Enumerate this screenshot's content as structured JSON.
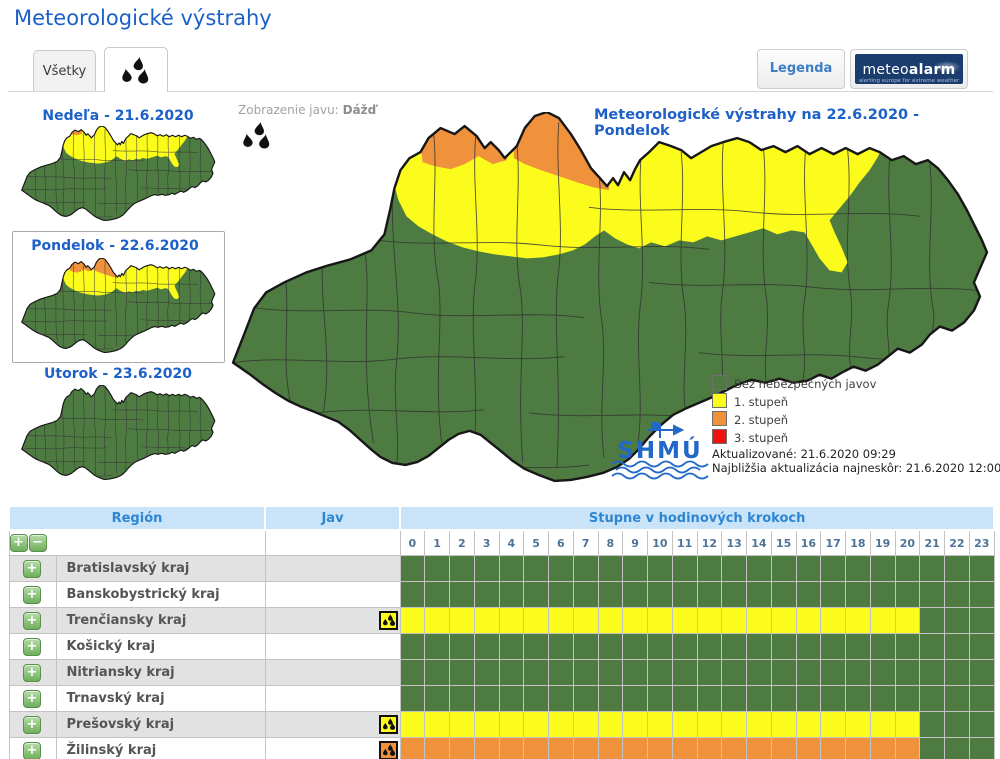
{
  "page": {
    "title": "Meteorologické výstrahy"
  },
  "tabs": {
    "all_label": "Všetky",
    "rain_tab": "rain-drops-tab"
  },
  "header_buttons": {
    "legend_label": "Legenda",
    "meteoalarm": {
      "word1": "meteo",
      "word2": "alarm",
      "tagline": "alerting europe for extreme weather"
    }
  },
  "sidebar": {
    "days": [
      {
        "label": "Nedeľa - 21.6.2020",
        "selected": false
      },
      {
        "label": "Pondelok - 22.6.2020",
        "selected": true
      },
      {
        "label": "Utorok - 23.6.2020",
        "selected": false
      }
    ]
  },
  "map": {
    "display_label": "Zobrazenie javu:",
    "display_value": "Dážď",
    "title": "Meteorologické výstrahy na 22.6.2020 - Pondelok",
    "legend": [
      {
        "label": "Bez nebezpečných javov",
        "color": "#4E7B41"
      },
      {
        "label": "1. stupeň",
        "color": "#FBFB1C"
      },
      {
        "label": "2. stupeň",
        "color": "#F0913C"
      },
      {
        "label": "3. stupeň",
        "color": "#F01111"
      }
    ],
    "updated": "Aktualizované: 21.6.2020 09:29",
    "next_update": "Najbližšia aktualizácia najneskôr: 21.6.2020 12:00",
    "logo_text": "SHMÚ"
  },
  "table": {
    "headers": {
      "region": "Región",
      "jav": "Jav",
      "hours": "Stupne v hodinových krokoch"
    },
    "hour_labels": [
      "0",
      "1",
      "2",
      "3",
      "4",
      "5",
      "6",
      "7",
      "8",
      "9",
      "10",
      "11",
      "12",
      "13",
      "14",
      "15",
      "16",
      "17",
      "18",
      "19",
      "20",
      "21",
      "22",
      "23"
    ],
    "rows": [
      {
        "region": "Bratislavský kraj",
        "jav_level": null,
        "levels": [
          0,
          0,
          0,
          0,
          0,
          0,
          0,
          0,
          0,
          0,
          0,
          0,
          0,
          0,
          0,
          0,
          0,
          0,
          0,
          0,
          0,
          0,
          0,
          0
        ]
      },
      {
        "region": "Banskobystrický kraj",
        "jav_level": null,
        "levels": [
          0,
          0,
          0,
          0,
          0,
          0,
          0,
          0,
          0,
          0,
          0,
          0,
          0,
          0,
          0,
          0,
          0,
          0,
          0,
          0,
          0,
          0,
          0,
          0
        ]
      },
      {
        "region": "Trenčiansky kraj",
        "jav_level": 1,
        "levels": [
          1,
          1,
          1,
          1,
          1,
          1,
          1,
          1,
          1,
          1,
          1,
          1,
          1,
          1,
          1,
          1,
          1,
          1,
          1,
          1,
          1,
          0,
          0,
          0
        ]
      },
      {
        "region": "Košický kraj",
        "jav_level": null,
        "levels": [
          0,
          0,
          0,
          0,
          0,
          0,
          0,
          0,
          0,
          0,
          0,
          0,
          0,
          0,
          0,
          0,
          0,
          0,
          0,
          0,
          0,
          0,
          0,
          0
        ]
      },
      {
        "region": "Nitriansky kraj",
        "jav_level": null,
        "levels": [
          0,
          0,
          0,
          0,
          0,
          0,
          0,
          0,
          0,
          0,
          0,
          0,
          0,
          0,
          0,
          0,
          0,
          0,
          0,
          0,
          0,
          0,
          0,
          0
        ]
      },
      {
        "region": "Trnavský kraj",
        "jav_level": null,
        "levels": [
          0,
          0,
          0,
          0,
          0,
          0,
          0,
          0,
          0,
          0,
          0,
          0,
          0,
          0,
          0,
          0,
          0,
          0,
          0,
          0,
          0,
          0,
          0,
          0
        ]
      },
      {
        "region": "Prešovský kraj",
        "jav_level": 1,
        "levels": [
          1,
          1,
          1,
          1,
          1,
          1,
          1,
          1,
          1,
          1,
          1,
          1,
          1,
          1,
          1,
          1,
          1,
          1,
          1,
          1,
          1,
          0,
          0,
          0
        ]
      },
      {
        "region": "Žilinský kraj",
        "jav_level": 2,
        "levels": [
          2,
          2,
          2,
          2,
          2,
          2,
          2,
          2,
          2,
          2,
          2,
          2,
          2,
          2,
          2,
          2,
          2,
          2,
          2,
          2,
          2,
          0,
          0,
          0
        ]
      }
    ]
  },
  "colors": {
    "level0": "#4E7B41",
    "level1": "#FBFB1C",
    "level2": "#F0913C",
    "level3": "#F01111",
    "blue": "#1C60C8",
    "hdrbg": "#C9E4F8",
    "hdrtx": "#2E86D2"
  }
}
